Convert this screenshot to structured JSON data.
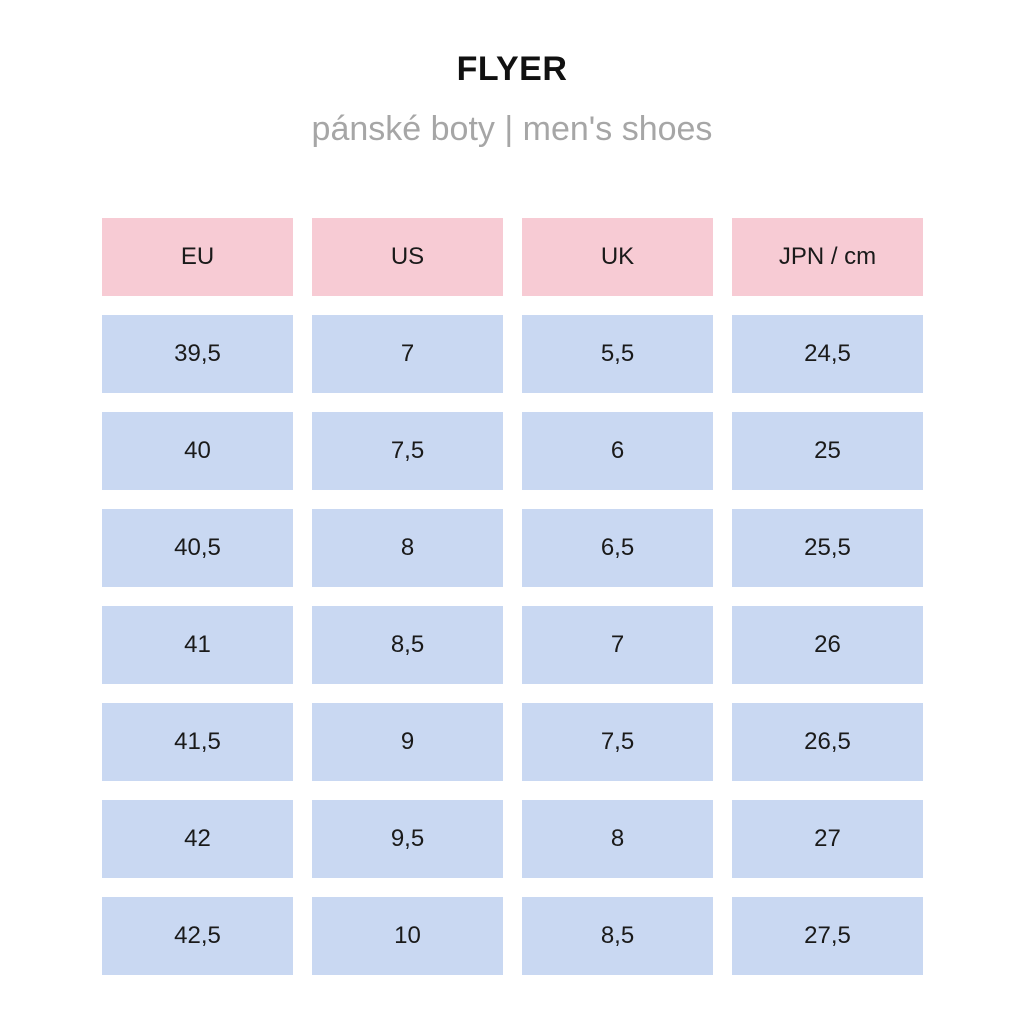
{
  "title": "FLYER",
  "subtitle": "pánské boty | men's shoes",
  "colors": {
    "header_bg": "#f7cbd4",
    "cell_bg": "#c9d8f2",
    "subtitle_text": "#a6a6a6"
  },
  "table": {
    "headers": [
      "EU",
      "US",
      "UK",
      "JPN / cm"
    ],
    "rows": [
      [
        "39,5",
        "7",
        "5,5",
        "24,5"
      ],
      [
        "40",
        "7,5",
        "6",
        "25"
      ],
      [
        "40,5",
        "8",
        "6,5",
        "25,5"
      ],
      [
        "41",
        "8,5",
        "7",
        "26"
      ],
      [
        "41,5",
        "9",
        "7,5",
        "26,5"
      ],
      [
        "42",
        "9,5",
        "8",
        "27"
      ],
      [
        "42,5",
        "10",
        "8,5",
        "27,5"
      ]
    ]
  }
}
